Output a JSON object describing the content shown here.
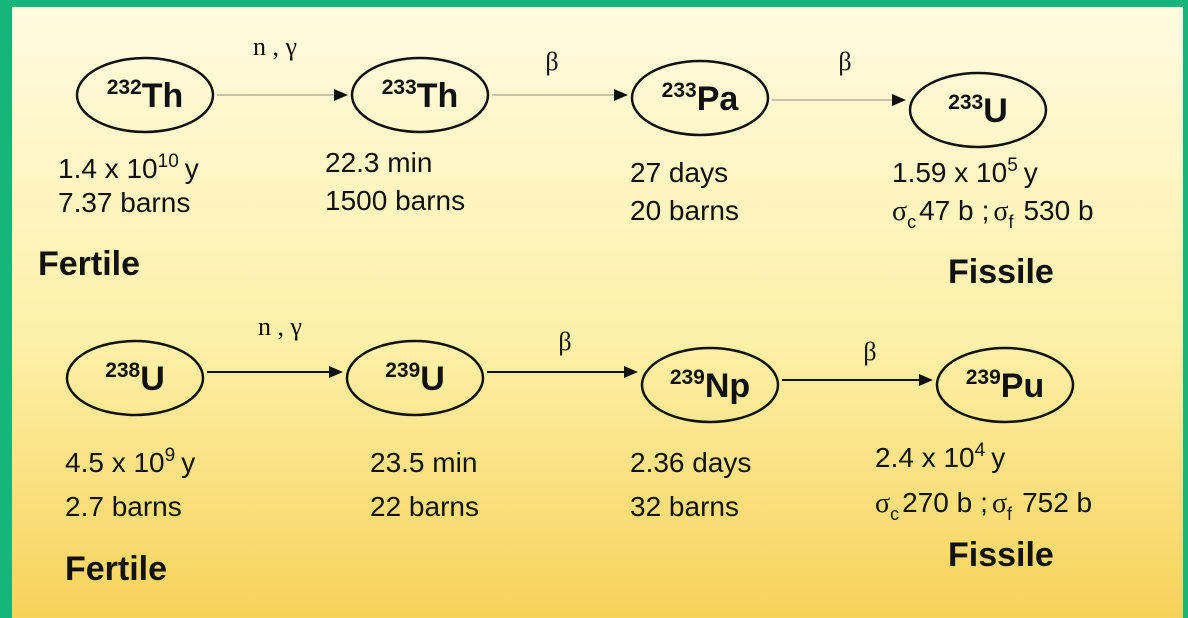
{
  "chains": [
    {
      "nodes": [
        {
          "mass": "232",
          "symbol": "Th",
          "half_life": {
            "mantissa": "1.4 x 10",
            "exponent": "10",
            "unit": "y"
          },
          "cross_section": "7.37 barns"
        },
        {
          "mass": "233",
          "symbol": "Th",
          "half_life": {
            "text": "22.3 min"
          },
          "cross_section": "1500 barns"
        },
        {
          "mass": "233",
          "symbol": "Pa",
          "half_life": {
            "text": "27 days"
          },
          "cross_section": "20 barns"
        },
        {
          "mass": "233",
          "symbol": "U",
          "half_life": {
            "mantissa": "1.59 x 10",
            "exponent": "5",
            "unit": "y"
          },
          "sigma_c": {
            "symbol": "σ",
            "sub": "c",
            "value": "47 b"
          },
          "separator": ";",
          "sigma_f": {
            "symbol": "σ",
            "sub": "f",
            "value": "530 b"
          }
        }
      ],
      "arrows": [
        "n , γ",
        "β",
        "β"
      ],
      "fertile_label": "Fertile",
      "fissile_label": "Fissile"
    },
    {
      "nodes": [
        {
          "mass": "238",
          "symbol": "U",
          "half_life": {
            "mantissa": "4.5 x 10",
            "exponent": "9",
            "unit": "y"
          },
          "cross_section": "2.7 barns"
        },
        {
          "mass": "239",
          "symbol": "U",
          "half_life": {
            "text": "23.5 min"
          },
          "cross_section": "22 barns"
        },
        {
          "mass": "239",
          "symbol": "Np",
          "half_life": {
            "text": "2.36 days"
          },
          "cross_section": "32 barns"
        },
        {
          "mass": "239",
          "symbol": "Pu",
          "half_life": {
            "mantissa": "2.4 x 10",
            "exponent": "4",
            "unit": "y"
          },
          "sigma_c": {
            "symbol": "σ",
            "sub": "c",
            "value": "270 b"
          },
          "separator": ";",
          "sigma_f": {
            "symbol": "σ",
            "sub": "f",
            "value": "752 b"
          }
        }
      ],
      "arrows": [
        "n , γ",
        "β",
        "β"
      ],
      "fertile_label": "Fertile",
      "fissile_label": "Fissile"
    }
  ]
}
